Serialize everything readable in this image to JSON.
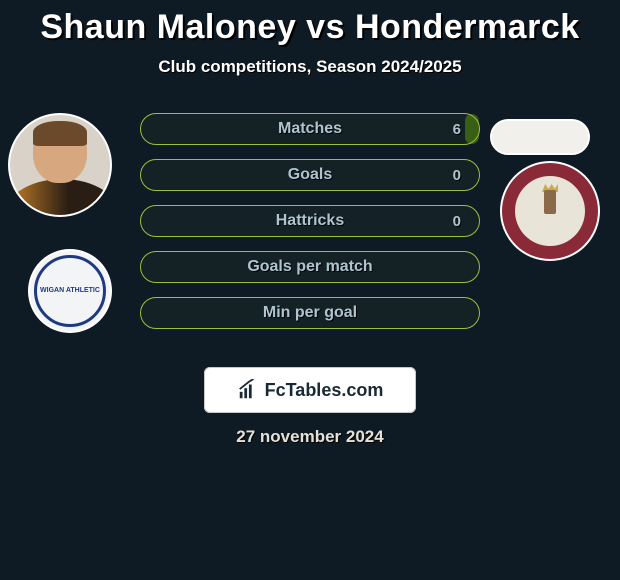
{
  "title": "Shaun Maloney vs Hondermarck",
  "subtitle": "Club competitions, Season 2024/2025",
  "date": "27 november 2024",
  "theme": {
    "bg": "#0e1a24",
    "bar_border": "#9bbf3a",
    "bar_fill": "#345a14",
    "text_muted": "#aec4d1"
  },
  "left_club_text": "WIGAN ATHLETIC",
  "banner_text": "FcTables.com",
  "bars": [
    {
      "label": "Matches",
      "value_right": "6",
      "fill_percent_right": 4
    },
    {
      "label": "Goals",
      "value_right": "0",
      "fill_percent_right": 0
    },
    {
      "label": "Hattricks",
      "value_right": "0",
      "fill_percent_right": 0
    },
    {
      "label": "Goals per match",
      "value_right": "",
      "fill_percent_right": 0
    },
    {
      "label": "Min per goal",
      "value_right": "",
      "fill_percent_right": 0
    }
  ]
}
